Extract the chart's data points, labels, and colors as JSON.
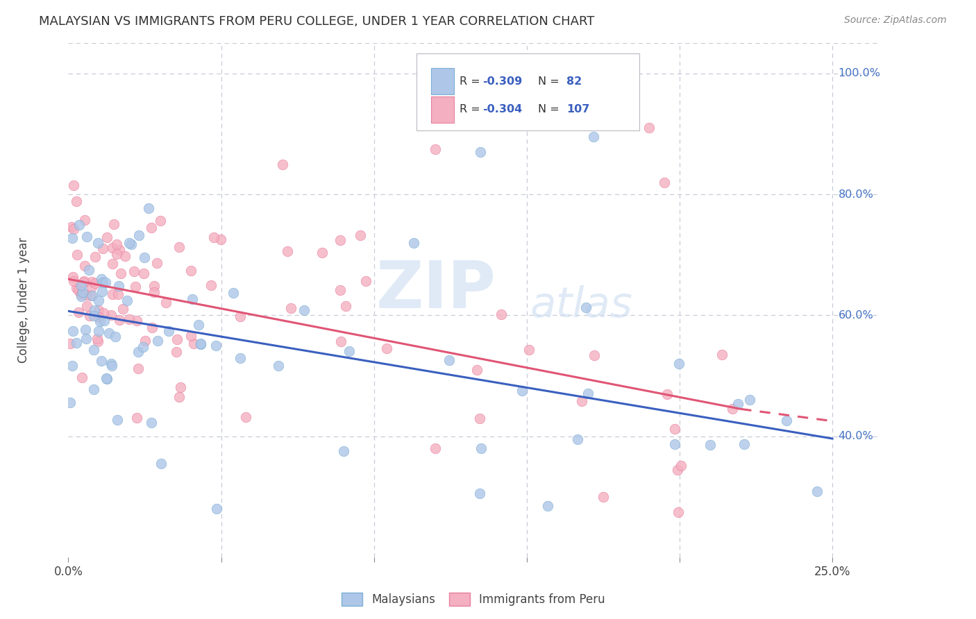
{
  "title": "MALAYSIAN VS IMMIGRANTS FROM PERU COLLEGE, UNDER 1 YEAR CORRELATION CHART",
  "source": "Source: ZipAtlas.com",
  "ylabel": "College, Under 1 year",
  "xlim": [
    0.0,
    0.265
  ],
  "ylim": [
    0.2,
    1.05
  ],
  "malaysian_color": "#aec6e8",
  "malaysian_edge": "#7bafd4",
  "peru_color": "#f4afc0",
  "peru_edge": "#e880a0",
  "regression_blue": "#3a5fbf",
  "regression_pink": "#e05575",
  "legend_R_blue": "-0.309",
  "legend_N_blue": "82",
  "legend_R_pink": "-0.304",
  "legend_N_pink": "107",
  "watermark_zip": "ZIP",
  "watermark_atlas": "atlas",
  "background_color": "#ffffff",
  "grid_color": "#c8ccd8",
  "title_color": "#333333",
  "axis_label_color": "#444444",
  "right_label_color": "#4472c4",
  "tick_label_color": "#444444",
  "malaysians_label": "Malaysians",
  "peru_label": "Immigrants from Peru",
  "blue_line_x0": 0.0,
  "blue_line_y0": 0.607,
  "blue_line_x1": 0.25,
  "blue_line_y1": 0.396,
  "pink_line_x0": 0.0,
  "pink_line_y0": 0.66,
  "pink_line_x1": 0.22,
  "pink_line_y1": 0.445,
  "pink_line_dash_x0": 0.22,
  "pink_line_dash_y0": 0.445,
  "pink_line_dash_x1": 0.25,
  "pink_line_dash_y1": 0.425,
  "dot_size": 110,
  "dot_alpha": 0.8
}
